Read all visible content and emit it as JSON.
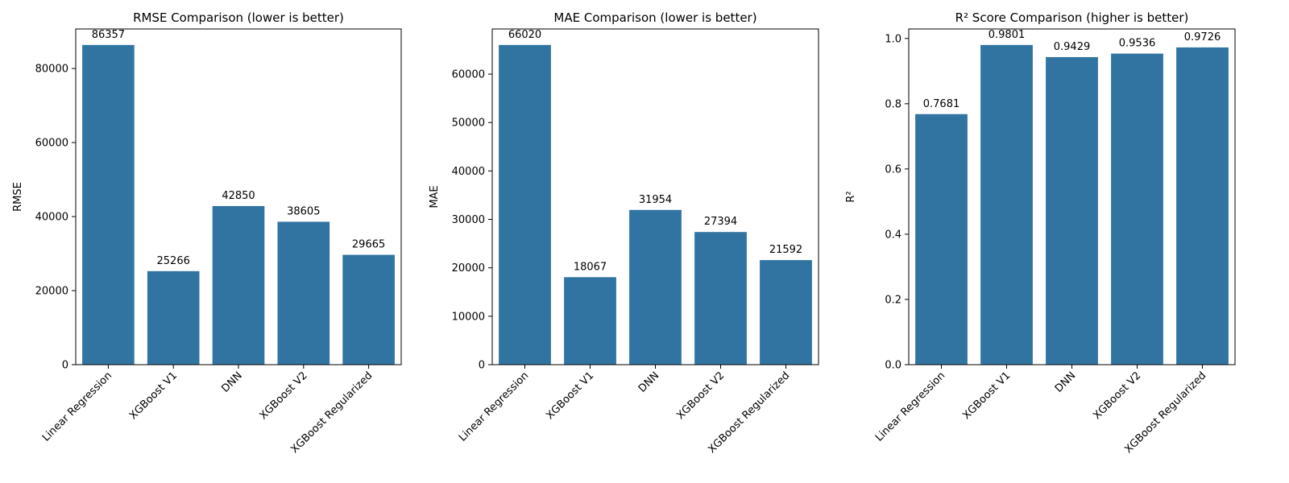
{
  "chart_data": [
    {
      "type": "bar",
      "title": "RMSE Comparison (lower is better)",
      "xlabel": "",
      "ylabel": "RMSE",
      "categories": [
        "Linear Regression",
        "XGBoost V1",
        "DNN",
        "XGBoost V2",
        "XGBoost Regularized"
      ],
      "values": [
        86357,
        25266,
        42850,
        38605,
        29665
      ],
      "data_labels": [
        "86357",
        "25266",
        "42850",
        "38605",
        "29665"
      ],
      "ylim": [
        0,
        90679
      ],
      "yticks": [
        0,
        20000,
        40000,
        60000,
        80000
      ],
      "ytick_labels": [
        "0",
        "20000",
        "40000",
        "60000",
        "80000"
      ],
      "color": "#3274a1",
      "grid": false,
      "legend": "none"
    },
    {
      "type": "bar",
      "title": "MAE Comparison (lower is better)",
      "xlabel": "",
      "ylabel": "MAE",
      "categories": [
        "Linear Regression",
        "XGBoost V1",
        "DNN",
        "XGBoost V2",
        "XGBoost Regularized"
      ],
      "values": [
        66020,
        18067,
        31954,
        27394,
        21592
      ],
      "data_labels": [
        "66020",
        "18067",
        "31954",
        "27394",
        "21592"
      ],
      "ylim": [
        0,
        69321
      ],
      "yticks": [
        0,
        10000,
        20000,
        30000,
        40000,
        50000,
        60000
      ],
      "ytick_labels": [
        "0",
        "10000",
        "20000",
        "30000",
        "40000",
        "50000",
        "60000"
      ],
      "color": "#3274a1",
      "grid": false,
      "legend": "none"
    },
    {
      "type": "bar",
      "title": "R² Score Comparison (higher is better)",
      "xlabel": "",
      "ylabel": "R²",
      "categories": [
        "Linear Regression",
        "XGBoost V1",
        "DNN",
        "XGBoost V2",
        "XGBoost Regularized"
      ],
      "values": [
        0.7681,
        0.9801,
        0.9429,
        0.9536,
        0.9726
      ],
      "data_labels": [
        "0.7681",
        "0.9801",
        "0.9429",
        "0.9536",
        "0.9726"
      ],
      "ylim": [
        0,
        1.0291
      ],
      "yticks": [
        0.0,
        0.2,
        0.4,
        0.6,
        0.8,
        1.0
      ],
      "ytick_labels": [
        "0.0",
        "0.2",
        "0.4",
        "0.6",
        "0.8",
        "1.0"
      ],
      "color": "#3274a1",
      "grid": false,
      "legend": "none"
    }
  ]
}
